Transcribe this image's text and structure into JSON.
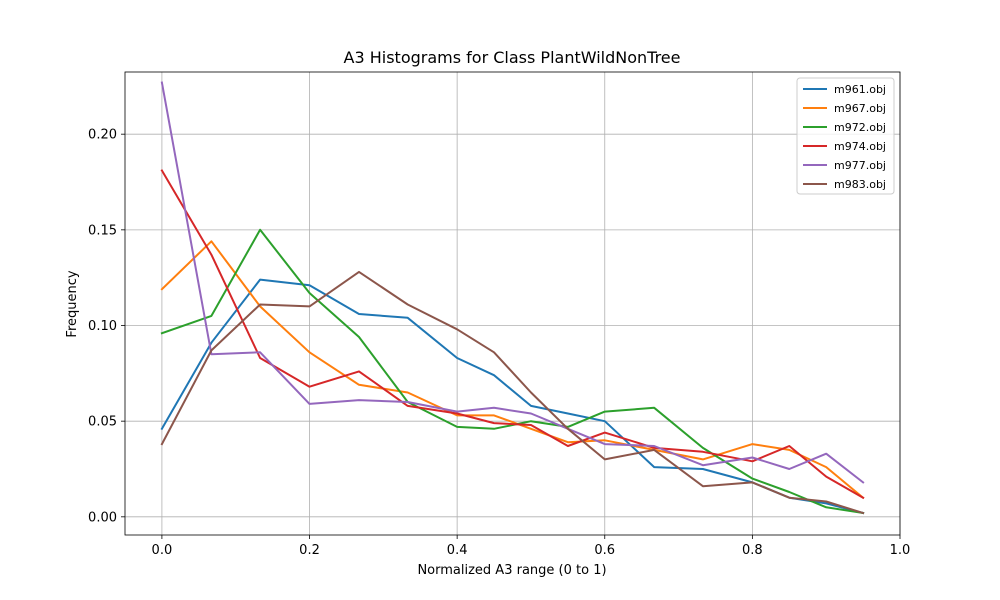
{
  "chart_data": {
    "type": "line",
    "title": "A3 Histograms for Class PlantWildNonTree",
    "xlabel": "Normalized A3 range (0 to 1)",
    "ylabel": "Frequency",
    "xlim": [
      -0.05,
      1.0
    ],
    "ylim": [
      -0.0095,
      0.2325
    ],
    "xticks": [
      0.0,
      0.2,
      0.4,
      0.6,
      0.8,
      1.0
    ],
    "xtick_labels": [
      "0.0",
      "0.2",
      "0.4",
      "0.6",
      "0.8",
      "1.0"
    ],
    "yticks": [
      0.0,
      0.05,
      0.1,
      0.15,
      0.2
    ],
    "ytick_labels": [
      "0.00",
      "0.05",
      "0.10",
      "0.15",
      "0.20"
    ],
    "grid": true,
    "legend_position": "top-right",
    "x": [
      0.0,
      0.0667,
      0.1333,
      0.2,
      0.2667,
      0.3333,
      0.4,
      0.4667,
      0.5333,
      0.6,
      0.6667,
      0.7333,
      0.8,
      0.8667,
      0.9333,
      0.95
    ],
    "series": [
      {
        "name": "m961.obj",
        "color": "#1f77b4",
        "x": [
          0.0,
          0.067,
          0.133,
          0.2,
          0.267,
          0.333,
          0.4,
          0.45,
          0.5,
          0.55,
          0.6,
          0.667,
          0.733,
          0.8,
          0.85,
          0.9,
          0.95
        ],
        "values": [
          0.046,
          0.091,
          0.124,
          0.121,
          0.106,
          0.104,
          0.083,
          0.074,
          0.058,
          0.054,
          0.05,
          0.026,
          0.025,
          0.018,
          0.01,
          0.007,
          0.002
        ]
      },
      {
        "name": "m967.obj",
        "color": "#ff7f0e",
        "x": [
          0.0,
          0.067,
          0.133,
          0.2,
          0.267,
          0.333,
          0.4,
          0.45,
          0.5,
          0.55,
          0.6,
          0.667,
          0.733,
          0.8,
          0.85,
          0.9,
          0.95
        ],
        "values": [
          0.119,
          0.144,
          0.11,
          0.086,
          0.069,
          0.065,
          0.053,
          0.053,
          0.046,
          0.039,
          0.04,
          0.035,
          0.03,
          0.038,
          0.035,
          0.026,
          0.01
        ]
      },
      {
        "name": "m972.obj",
        "color": "#2ca02c",
        "x": [
          0.0,
          0.067,
          0.133,
          0.2,
          0.267,
          0.333,
          0.4,
          0.45,
          0.5,
          0.55,
          0.6,
          0.667,
          0.733,
          0.8,
          0.85,
          0.9,
          0.95
        ],
        "values": [
          0.096,
          0.105,
          0.15,
          0.117,
          0.094,
          0.06,
          0.047,
          0.046,
          0.05,
          0.047,
          0.055,
          0.057,
          0.036,
          0.02,
          0.013,
          0.005,
          0.002
        ]
      },
      {
        "name": "m974.obj",
        "color": "#d62728",
        "x": [
          0.0,
          0.067,
          0.133,
          0.2,
          0.267,
          0.333,
          0.4,
          0.45,
          0.5,
          0.55,
          0.6,
          0.667,
          0.733,
          0.8,
          0.85,
          0.9,
          0.95
        ],
        "values": [
          0.181,
          0.137,
          0.083,
          0.068,
          0.076,
          0.058,
          0.054,
          0.049,
          0.048,
          0.037,
          0.044,
          0.036,
          0.034,
          0.029,
          0.037,
          0.021,
          0.01
        ]
      },
      {
        "name": "m977.obj",
        "color": "#9467bd",
        "x": [
          0.0,
          0.067,
          0.133,
          0.2,
          0.267,
          0.333,
          0.4,
          0.45,
          0.5,
          0.55,
          0.6,
          0.667,
          0.733,
          0.8,
          0.85,
          0.9,
          0.95
        ],
        "values": [
          0.227,
          0.085,
          0.086,
          0.059,
          0.061,
          0.06,
          0.055,
          0.057,
          0.054,
          0.046,
          0.038,
          0.037,
          0.027,
          0.031,
          0.025,
          0.033,
          0.018
        ]
      },
      {
        "name": "m983.obj",
        "color": "#8c564b",
        "x": [
          0.0,
          0.067,
          0.133,
          0.2,
          0.267,
          0.333,
          0.4,
          0.45,
          0.5,
          0.55,
          0.6,
          0.667,
          0.733,
          0.8,
          0.85,
          0.9,
          0.95
        ],
        "values": [
          0.038,
          0.087,
          0.111,
          0.11,
          0.128,
          0.111,
          0.098,
          0.086,
          0.065,
          0.046,
          0.03,
          0.035,
          0.016,
          0.018,
          0.01,
          0.008,
          0.002
        ]
      }
    ]
  }
}
